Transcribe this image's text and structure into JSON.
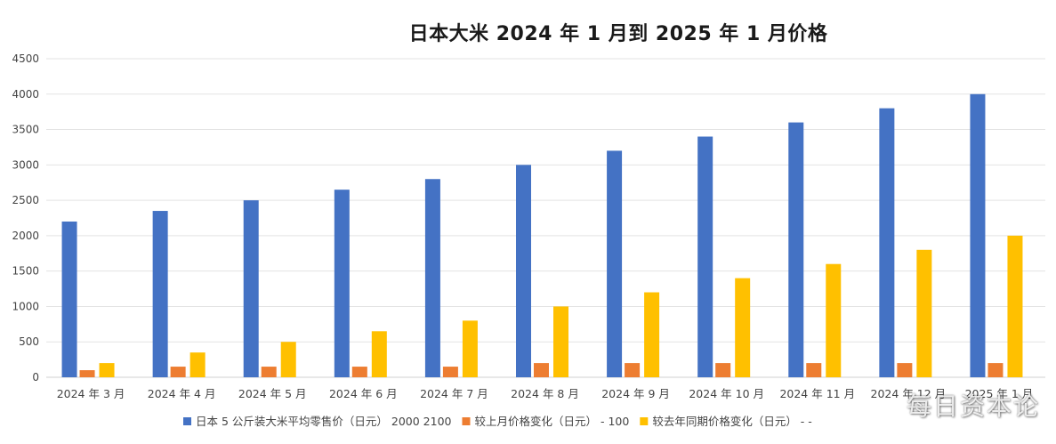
{
  "chart_data": {
    "type": "bar",
    "title": "日本大米 2024 年 1 月到 2025 年 1 月价格",
    "categories": [
      "2024 年 3 月",
      "2024 年 4 月",
      "2024 年 5 月",
      "2024 年 6 月",
      "2024 年 7 月",
      "2024 年 8 月",
      "2024 年 9 月",
      "2024 年 10 月",
      "2024 年 11 月",
      "2024 年 12 月",
      "2025 年 1 月"
    ],
    "series": [
      {
        "name": "日本 5 公斤装大米平均零售价（日元） 2000 2100",
        "color": "#4472C4",
        "values": [
          2200,
          2350,
          2500,
          2650,
          2800,
          3000,
          3200,
          3400,
          3600,
          3800,
          4000
        ]
      },
      {
        "name": "较上月价格变化（日元） - 100",
        "color": "#ED7D31",
        "values": [
          100,
          150,
          150,
          150,
          150,
          200,
          200,
          200,
          200,
          200,
          200
        ]
      },
      {
        "name": "较去年同期价格变化（日元） - -",
        "color": "#FFC000",
        "values": [
          200,
          350,
          500,
          650,
          800,
          1000,
          1200,
          1400,
          1600,
          1800,
          2000
        ]
      }
    ],
    "ylim": [
      0,
      4500
    ],
    "yticks": [
      0,
      500,
      1000,
      1500,
      2000,
      2500,
      3000,
      3500,
      4000,
      4500
    ],
    "grid": true,
    "legend": "bottom"
  },
  "watermark": "每日资本论"
}
